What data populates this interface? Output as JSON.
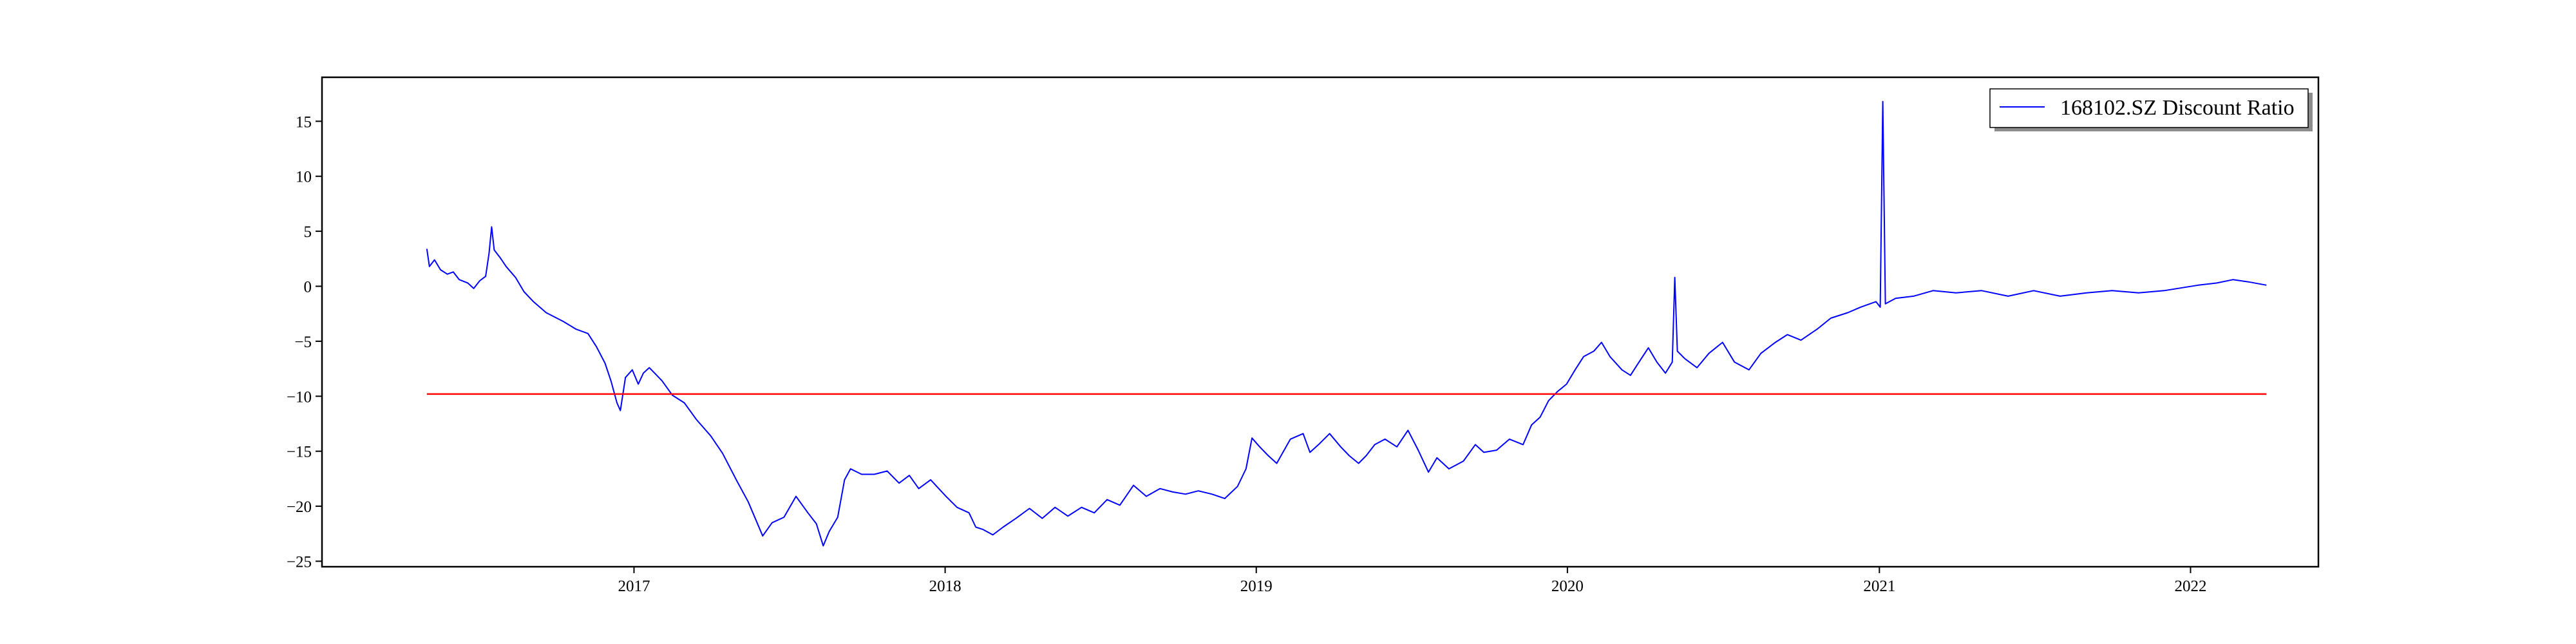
{
  "chart_data": {
    "type": "line",
    "title": "",
    "xlabel": "",
    "ylabel": "",
    "x_range": [
      "2016-01-01",
      "2022-05-31"
    ],
    "ylim": [
      -25.5,
      19
    ],
    "x_ticks": [
      {
        "date": "2017-01-01",
        "label": "2017"
      },
      {
        "date": "2018-01-01",
        "label": "2018"
      },
      {
        "date": "2019-01-01",
        "label": "2019"
      },
      {
        "date": "2020-01-01",
        "label": "2020"
      },
      {
        "date": "2021-01-01",
        "label": "2021"
      },
      {
        "date": "2022-01-01",
        "label": "2022"
      }
    ],
    "y_ticks": [
      15,
      10,
      5,
      0,
      -5,
      -10,
      -15,
      -20,
      -25
    ],
    "grid": false,
    "legend": {
      "position": "top-right",
      "entries": [
        "168102.SZ Discount Ratio"
      ]
    },
    "series": [
      {
        "name": "168102.SZ Discount Ratio",
        "color": "#0000ff",
        "points": [
          [
            "2016-05-03",
            3.4
          ],
          [
            "2016-05-06",
            1.8
          ],
          [
            "2016-05-12",
            2.4
          ],
          [
            "2016-05-19",
            1.5
          ],
          [
            "2016-05-27",
            1.1
          ],
          [
            "2016-06-03",
            1.3
          ],
          [
            "2016-06-10",
            0.6
          ],
          [
            "2016-06-20",
            0.3
          ],
          [
            "2016-06-27",
            -0.2
          ],
          [
            "2016-07-04",
            0.5
          ],
          [
            "2016-07-11",
            0.9
          ],
          [
            "2016-07-15",
            3.0
          ],
          [
            "2016-07-18",
            5.4
          ],
          [
            "2016-07-21",
            3.3
          ],
          [
            "2016-07-28",
            2.6
          ],
          [
            "2016-08-04",
            1.8
          ],
          [
            "2016-08-15",
            0.8
          ],
          [
            "2016-08-25",
            -0.5
          ],
          [
            "2016-09-05",
            -1.4
          ],
          [
            "2016-09-20",
            -2.4
          ],
          [
            "2016-10-10",
            -3.2
          ],
          [
            "2016-10-25",
            -3.9
          ],
          [
            "2016-11-08",
            -4.3
          ],
          [
            "2016-11-18",
            -5.5
          ],
          [
            "2016-11-28",
            -7.0
          ],
          [
            "2016-12-05",
            -8.6
          ],
          [
            "2016-12-12",
            -10.6
          ],
          [
            "2016-12-16",
            -11.3
          ],
          [
            "2016-12-22",
            -8.3
          ],
          [
            "2016-12-30",
            -7.6
          ],
          [
            "2017-01-06",
            -8.9
          ],
          [
            "2017-01-12",
            -7.9
          ],
          [
            "2017-01-19",
            -7.4
          ],
          [
            "2017-02-03",
            -8.6
          ],
          [
            "2017-02-15",
            -9.9
          ],
          [
            "2017-03-01",
            -10.6
          ],
          [
            "2017-03-15",
            -12.1
          ],
          [
            "2017-04-01",
            -13.6
          ],
          [
            "2017-04-15",
            -15.2
          ],
          [
            "2017-05-01",
            -17.6
          ],
          [
            "2017-05-15",
            -19.6
          ],
          [
            "2017-06-01",
            -22.7
          ],
          [
            "2017-06-12",
            -21.5
          ],
          [
            "2017-06-26",
            -21.0
          ],
          [
            "2017-07-10",
            -19.1
          ],
          [
            "2017-07-24",
            -20.6
          ],
          [
            "2017-08-03",
            -21.6
          ],
          [
            "2017-08-11",
            -23.6
          ],
          [
            "2017-08-18",
            -22.3
          ],
          [
            "2017-08-28",
            -21.0
          ],
          [
            "2017-09-05",
            -17.6
          ],
          [
            "2017-09-12",
            -16.6
          ],
          [
            "2017-09-25",
            -17.1
          ],
          [
            "2017-10-10",
            -17.1
          ],
          [
            "2017-10-25",
            -16.8
          ],
          [
            "2017-11-08",
            -17.9
          ],
          [
            "2017-11-20",
            -17.2
          ],
          [
            "2017-12-01",
            -18.4
          ],
          [
            "2017-12-15",
            -17.6
          ],
          [
            "2018-01-02",
            -19.1
          ],
          [
            "2018-01-15",
            -20.1
          ],
          [
            "2018-01-29",
            -20.6
          ],
          [
            "2018-02-06",
            -21.9
          ],
          [
            "2018-02-14",
            -22.1
          ],
          [
            "2018-02-26",
            -22.6
          ],
          [
            "2018-03-10",
            -21.9
          ],
          [
            "2018-03-25",
            -21.1
          ],
          [
            "2018-04-10",
            -20.2
          ],
          [
            "2018-04-25",
            -21.1
          ],
          [
            "2018-05-10",
            -20.1
          ],
          [
            "2018-05-25",
            -20.9
          ],
          [
            "2018-06-10",
            -20.1
          ],
          [
            "2018-06-25",
            -20.6
          ],
          [
            "2018-07-10",
            -19.4
          ],
          [
            "2018-07-25",
            -19.9
          ],
          [
            "2018-08-10",
            -18.1
          ],
          [
            "2018-08-25",
            -19.1
          ],
          [
            "2018-09-10",
            -18.4
          ],
          [
            "2018-09-25",
            -18.7
          ],
          [
            "2018-10-10",
            -18.9
          ],
          [
            "2018-10-25",
            -18.6
          ],
          [
            "2018-11-10",
            -18.9
          ],
          [
            "2018-11-25",
            -19.3
          ],
          [
            "2018-12-10",
            -18.2
          ],
          [
            "2018-12-20",
            -16.6
          ],
          [
            "2018-12-27",
            -13.8
          ],
          [
            "2019-01-05",
            -14.6
          ],
          [
            "2019-01-15",
            -15.4
          ],
          [
            "2019-01-25",
            -16.1
          ],
          [
            "2019-02-10",
            -13.9
          ],
          [
            "2019-02-25",
            -13.4
          ],
          [
            "2019-03-05",
            -15.1
          ],
          [
            "2019-03-15",
            -14.4
          ],
          [
            "2019-03-28",
            -13.4
          ],
          [
            "2019-04-10",
            -14.6
          ],
          [
            "2019-04-20",
            -15.4
          ],
          [
            "2019-05-01",
            -16.1
          ],
          [
            "2019-05-10",
            -15.4
          ],
          [
            "2019-05-20",
            -14.4
          ],
          [
            "2019-06-01",
            -13.9
          ],
          [
            "2019-06-15",
            -14.6
          ],
          [
            "2019-06-28",
            -13.1
          ],
          [
            "2019-07-10",
            -14.9
          ],
          [
            "2019-07-22",
            -16.9
          ],
          [
            "2019-08-01",
            -15.6
          ],
          [
            "2019-08-15",
            -16.6
          ],
          [
            "2019-09-01",
            -15.9
          ],
          [
            "2019-09-15",
            -14.4
          ],
          [
            "2019-09-25",
            -15.1
          ],
          [
            "2019-10-10",
            -14.9
          ],
          [
            "2019-10-25",
            -13.9
          ],
          [
            "2019-11-10",
            -14.4
          ],
          [
            "2019-11-20",
            -12.6
          ],
          [
            "2019-11-30",
            -11.9
          ],
          [
            "2019-12-10",
            -10.4
          ],
          [
            "2019-12-20",
            -9.6
          ],
          [
            "2019-12-31",
            -8.9
          ],
          [
            "2020-01-10",
            -7.6
          ],
          [
            "2020-01-20",
            -6.4
          ],
          [
            "2020-02-01",
            -5.9
          ],
          [
            "2020-02-10",
            -5.1
          ],
          [
            "2020-02-20",
            -6.4
          ],
          [
            "2020-03-05",
            -7.6
          ],
          [
            "2020-03-15",
            -8.1
          ],
          [
            "2020-03-25",
            -6.9
          ],
          [
            "2020-04-05",
            -5.6
          ],
          [
            "2020-04-15",
            -6.9
          ],
          [
            "2020-04-25",
            -7.9
          ],
          [
            "2020-05-03",
            -6.9
          ],
          [
            "2020-05-06",
            0.8
          ],
          [
            "2020-05-09",
            -5.9
          ],
          [
            "2020-05-18",
            -6.6
          ],
          [
            "2020-06-01",
            -7.4
          ],
          [
            "2020-06-15",
            -6.1
          ],
          [
            "2020-07-01",
            -5.1
          ],
          [
            "2020-07-15",
            -6.9
          ],
          [
            "2020-08-01",
            -7.6
          ],
          [
            "2020-08-15",
            -6.1
          ],
          [
            "2020-09-01",
            -5.1
          ],
          [
            "2020-09-15",
            -4.4
          ],
          [
            "2020-10-01",
            -4.9
          ],
          [
            "2020-10-20",
            -3.9
          ],
          [
            "2020-11-05",
            -2.9
          ],
          [
            "2020-11-25",
            -2.4
          ],
          [
            "2020-12-10",
            -1.9
          ],
          [
            "2020-12-28",
            -1.4
          ],
          [
            "2021-01-02",
            -1.9
          ],
          [
            "2021-01-05",
            16.8
          ],
          [
            "2021-01-08",
            -1.6
          ],
          [
            "2021-01-20",
            -1.1
          ],
          [
            "2021-02-10",
            -0.9
          ],
          [
            "2021-03-05",
            -0.4
          ],
          [
            "2021-04-01",
            -0.6
          ],
          [
            "2021-05-01",
            -0.4
          ],
          [
            "2021-06-01",
            -0.9
          ],
          [
            "2021-07-01",
            -0.4
          ],
          [
            "2021-08-01",
            -0.9
          ],
          [
            "2021-09-01",
            -0.6
          ],
          [
            "2021-10-01",
            -0.4
          ],
          [
            "2021-11-01",
            -0.6
          ],
          [
            "2021-12-01",
            -0.4
          ],
          [
            "2022-01-10",
            0.1
          ],
          [
            "2022-02-01",
            0.3
          ],
          [
            "2022-02-20",
            0.6
          ],
          [
            "2022-03-10",
            0.4
          ],
          [
            "2022-03-31",
            0.1
          ]
        ]
      },
      {
        "name": "",
        "color": "#ff0000",
        "points": [
          [
            "2016-05-03",
            -9.8
          ],
          [
            "2022-03-31",
            -9.8
          ]
        ]
      }
    ]
  }
}
